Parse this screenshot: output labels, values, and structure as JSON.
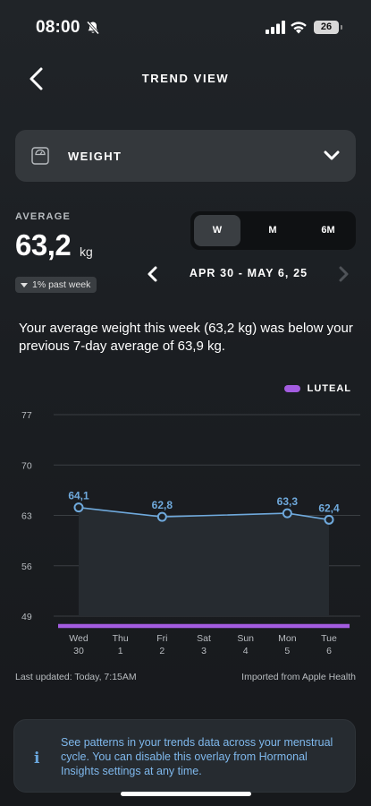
{
  "status_bar": {
    "time": "08:00",
    "battery": "26"
  },
  "header": {
    "title": "TREND VIEW"
  },
  "metric": {
    "label": "WEIGHT"
  },
  "average": {
    "label": "AVERAGE",
    "value": "63,2",
    "unit": "kg",
    "change": "1% past week",
    "change_direction": "down"
  },
  "period_tabs": [
    {
      "label": "W",
      "active": true
    },
    {
      "label": "M",
      "active": false
    },
    {
      "label": "6M",
      "active": false
    }
  ],
  "date_range": "APR 30 - MAY 6, 25",
  "summary": "Your average weight this week (63,2 kg) was below your previous 7-day average of 63,9 kg.",
  "legend": {
    "label": "LUTEAL",
    "color": "#a35ce0"
  },
  "chart_data": {
    "type": "line",
    "y_ticks": [
      77,
      70,
      63,
      56,
      49
    ],
    "ylim": [
      49,
      77
    ],
    "x_days": [
      "Wed",
      "Thu",
      "Fri",
      "Sat",
      "Sun",
      "Mon",
      "Tue"
    ],
    "x_dates": [
      "30",
      "1",
      "2",
      "3",
      "4",
      "5",
      "6"
    ],
    "points": [
      {
        "day_index": 0,
        "value": 64.1,
        "label": "64,1"
      },
      {
        "day_index": 2,
        "value": 62.8,
        "label": "62,8"
      },
      {
        "day_index": 5,
        "value": 63.3,
        "label": "63,3"
      },
      {
        "day_index": 6,
        "value": 62.4,
        "label": "62,4"
      }
    ],
    "line_color": "#6fa9dc",
    "phase_band": {
      "label": "LUTEAL",
      "from_index": 0,
      "to_index": 6,
      "color": "#a35ce0"
    },
    "grid": true
  },
  "footer": {
    "last_updated": "Last updated: Today, 7:15AM",
    "source": "Imported from Apple Health"
  },
  "info_card": {
    "icon": "info-icon",
    "text": "See patterns in your trends data across your menstrual cycle. You can disable this overlay from Hormonal Insights settings at any time."
  }
}
